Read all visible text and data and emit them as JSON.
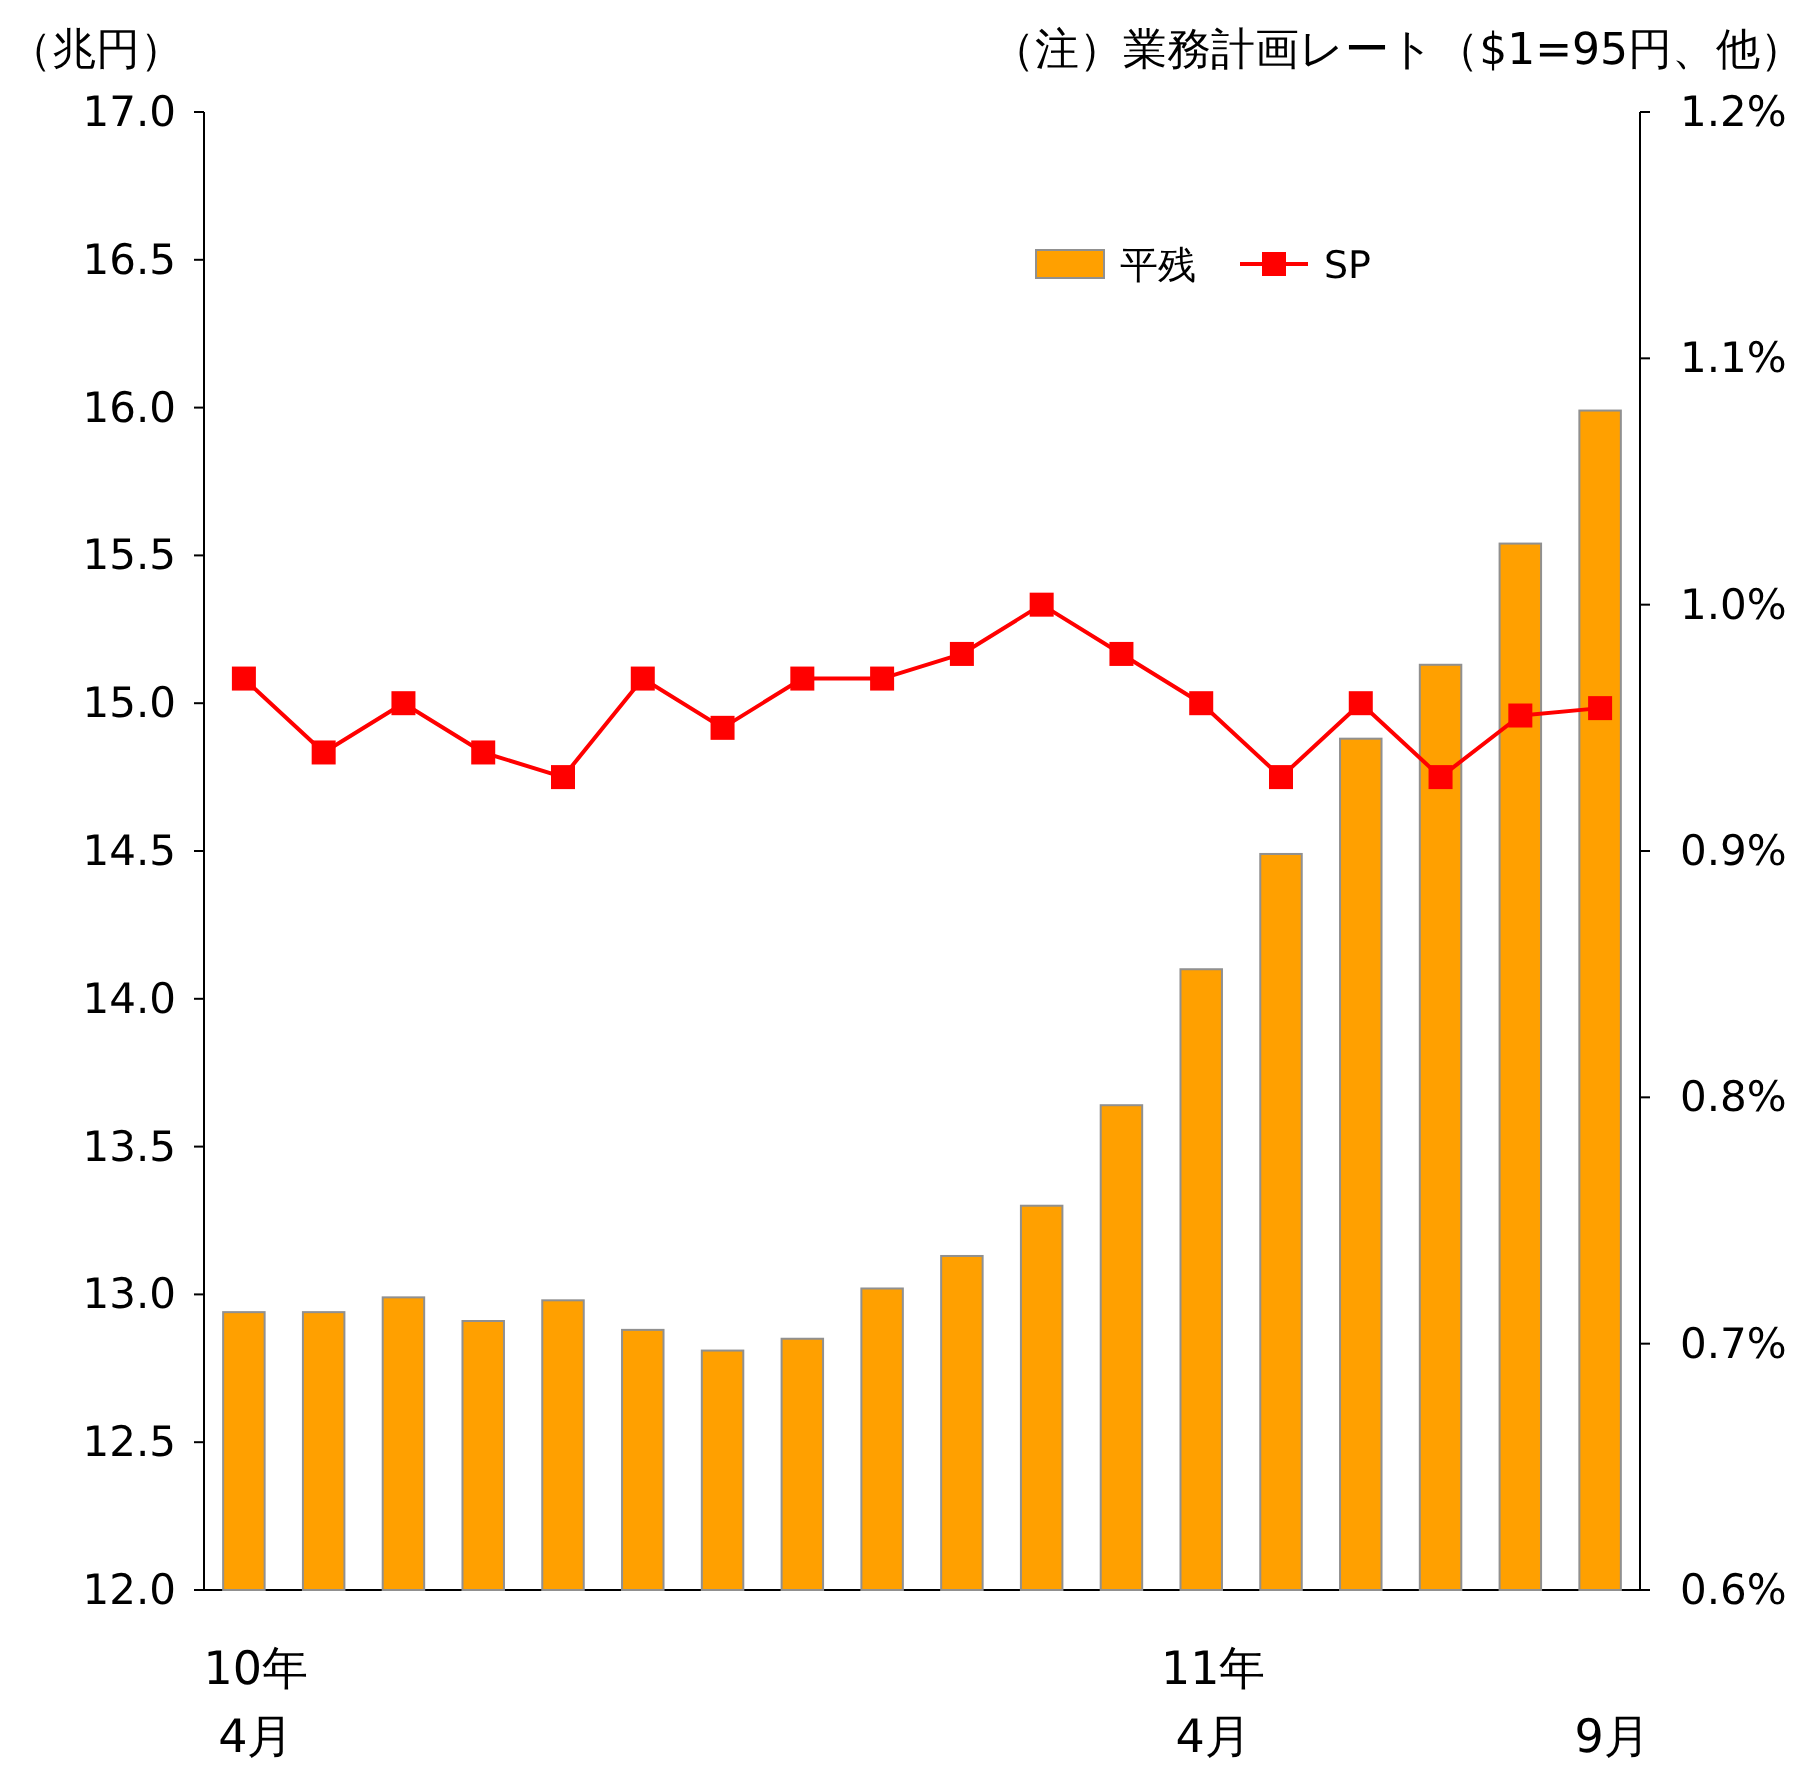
{
  "chart_data": {
    "type": "bar",
    "ylabel": "（兆円）",
    "annotations": [
      "（注）業務計画レート（$1=95円、他）"
    ],
    "categories": [
      "10年\n4月",
      null,
      null,
      null,
      null,
      null,
      null,
      null,
      null,
      null,
      null,
      null,
      "11年\n4月",
      null,
      null,
      null,
      null,
      "9月"
    ],
    "series": [
      {
        "name": "平残",
        "color": "#ffa000",
        "values": [
          12.94,
          12.94,
          12.99,
          12.91,
          12.98,
          12.88,
          12.81,
          12.85,
          13.02,
          13.13,
          13.3,
          13.64,
          14.1,
          14.49,
          14.88,
          15.13,
          15.54,
          15.99
        ]
      },
      {
        "name": "SP",
        "type": "line",
        "axis": "y2",
        "color": "#ff0000",
        "marker": "square",
        "values": [
          0.97,
          0.94,
          0.96,
          0.94,
          0.93,
          0.97,
          0.95,
          0.97,
          0.97,
          0.98,
          1.0,
          0.98,
          0.96,
          0.93,
          0.96,
          0.93,
          0.955,
          0.958
        ]
      }
    ],
    "ylim": [
      12,
      17
    ],
    "yticks": [
      {
        "value": 12,
        "label": "12.0"
      },
      {
        "value": 12.5,
        "label": "12.5"
      },
      {
        "value": 13,
        "label": "13.0"
      },
      {
        "value": 13.5,
        "label": "13.5"
      },
      {
        "value": 14,
        "label": "14.0"
      },
      {
        "value": 14.5,
        "label": "14.5"
      },
      {
        "value": 15,
        "label": "15.0"
      },
      {
        "value": 15.5,
        "label": "15.5"
      },
      {
        "value": 16,
        "label": "16.0"
      },
      {
        "value": 16.5,
        "label": "16.5"
      },
      {
        "value": 17,
        "label": "17.0"
      }
    ],
    "y2lim": [
      0.6,
      1.2
    ],
    "y2ticks": [
      {
        "value": 0.6,
        "label": "0.6%"
      },
      {
        "value": 0.7,
        "label": "0.7%"
      },
      {
        "value": 0.8,
        "label": "0.8%"
      },
      {
        "value": 0.9,
        "label": "0.9%"
      },
      {
        "value": 1.0,
        "label": "1.0%"
      },
      {
        "value": 1.1,
        "label": "1.1%"
      },
      {
        "value": 1.2,
        "label": "1.2%"
      }
    ],
    "legend": "top"
  }
}
